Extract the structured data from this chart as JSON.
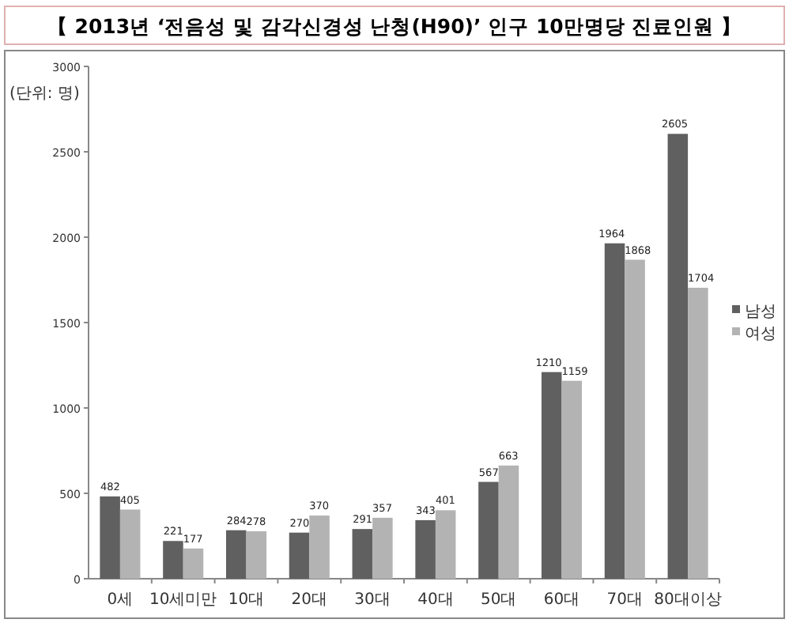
{
  "chart_data": {
    "type": "bar",
    "title": "【 2013년 ‘전음성 및 감각신경성 난청(H90)’ 인구 10만명당 진료인원 】",
    "annotations": [
      "(단위: 명)"
    ],
    "categories": [
      "0세",
      "10세미만",
      "10대",
      "20대",
      "30대",
      "40대",
      "50대",
      "60대",
      "70대",
      "80대이상"
    ],
    "series": [
      {
        "name": "남성",
        "color": "#606060",
        "values": [
          482,
          221,
          284,
          270,
          291,
          343,
          567,
          1210,
          1964,
          2605
        ]
      },
      {
        "name": "여성",
        "color": "#b3b3b3",
        "values": [
          405,
          177,
          278,
          370,
          357,
          401,
          663,
          1159,
          1868,
          1704
        ]
      }
    ],
    "ylim": [
      0,
      3000
    ],
    "yticks": [
      0,
      500,
      1000,
      1500,
      2000,
      2500,
      3000
    ],
    "data_labels": true,
    "legend": "right"
  }
}
